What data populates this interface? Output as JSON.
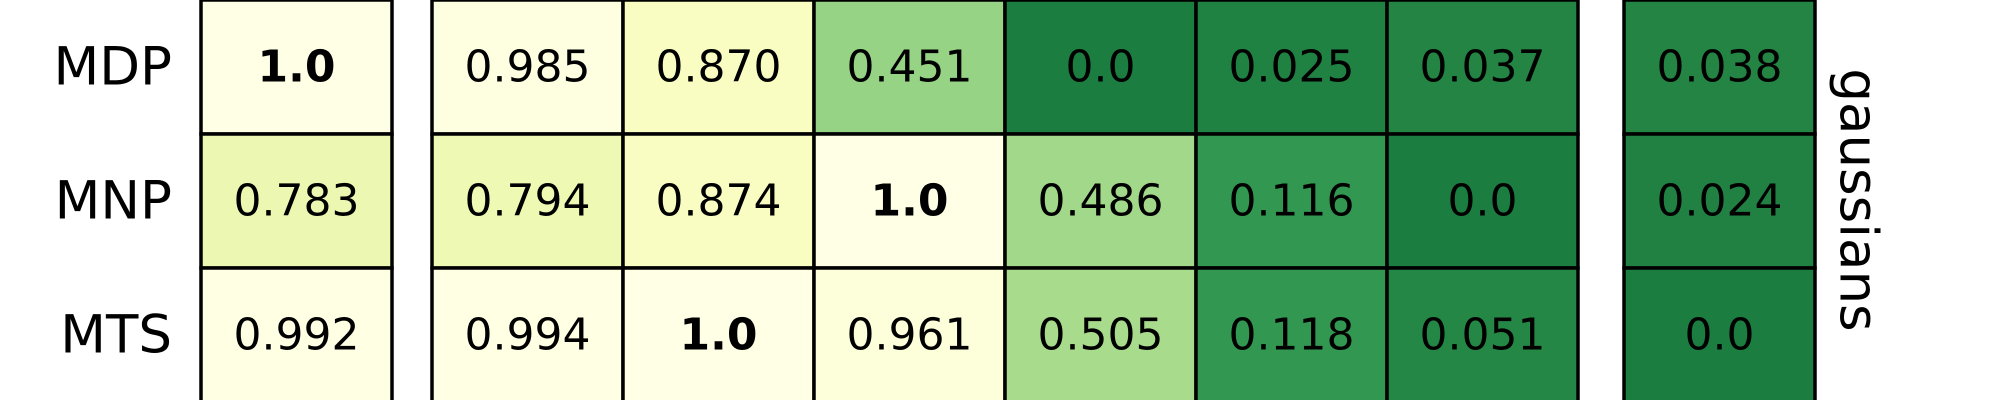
{
  "chart_data": {
    "type": "heatmap",
    "side_label": "gaussians",
    "rows": [
      "MDP",
      "MNP",
      "MTS"
    ],
    "column_groups": [
      1,
      6,
      1
    ],
    "values": [
      [
        "1.0",
        "0.985",
        "0.870",
        "0.451",
        "0.0",
        "0.025",
        "0.037",
        "0.038"
      ],
      [
        "0.783",
        "0.794",
        "0.874",
        "1.0",
        "0.486",
        "0.116",
        "0.0",
        "0.024"
      ],
      [
        "0.992",
        "0.994",
        "1.0",
        "0.961",
        "0.505",
        "0.118",
        "0.051",
        "0.0"
      ]
    ],
    "bold": [
      [
        true,
        false,
        false,
        false,
        false,
        false,
        false,
        false
      ],
      [
        false,
        false,
        false,
        true,
        false,
        false,
        false,
        false
      ],
      [
        false,
        false,
        true,
        false,
        false,
        false,
        false,
        false
      ]
    ],
    "colormap": "YlGn",
    "grid": true,
    "legend": false
  }
}
